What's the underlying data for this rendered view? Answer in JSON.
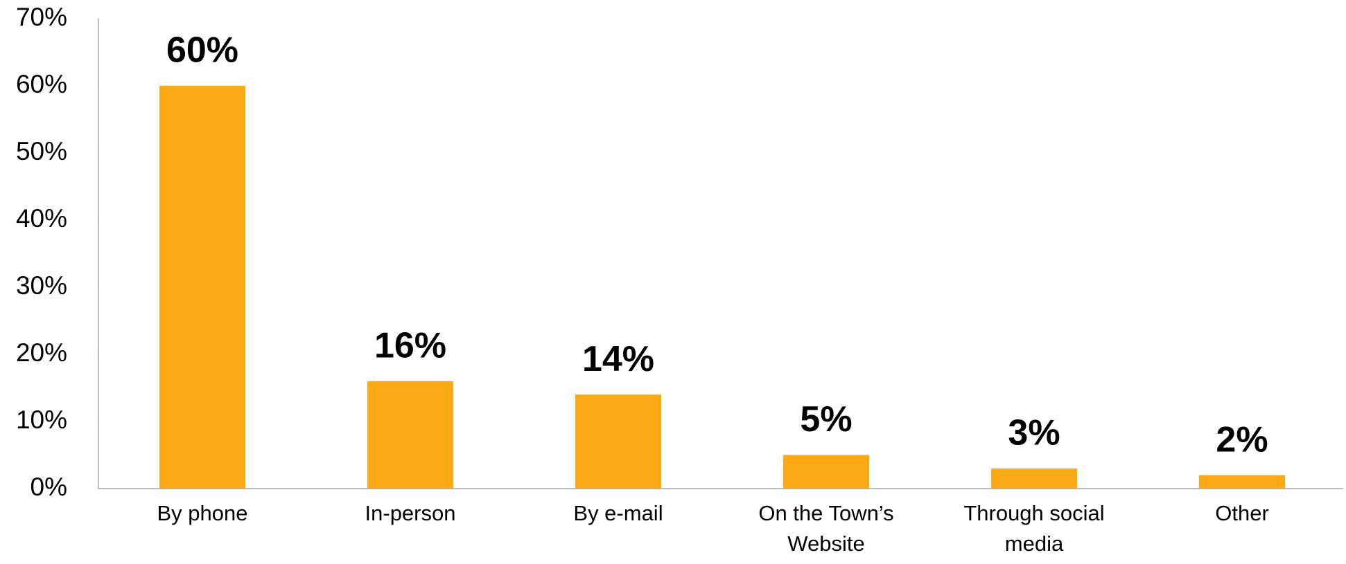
{
  "chart_data": {
    "type": "bar",
    "categories": [
      "By phone",
      "In-person",
      "By e-mail",
      "On the Town’s Website",
      "Through social media",
      "Other"
    ],
    "values": [
      60,
      16,
      14,
      5,
      3,
      2
    ],
    "value_labels": [
      "60%",
      "16%",
      "14%",
      "5%",
      "3%",
      "2%"
    ],
    "color": "#fda916",
    "ylim": [
      0,
      70
    ],
    "yticks": [
      {
        "value": 0,
        "label": "0%"
      },
      {
        "value": 10,
        "label": "10%"
      },
      {
        "value": 20,
        "label": "20%"
      },
      {
        "value": 30,
        "label": "30%"
      },
      {
        "value": 40,
        "label": "40%"
      },
      {
        "value": 50,
        "label": "50%"
      },
      {
        "value": 60,
        "label": "60%"
      },
      {
        "value": 70,
        "label": "70%"
      }
    ],
    "grid": false
  }
}
